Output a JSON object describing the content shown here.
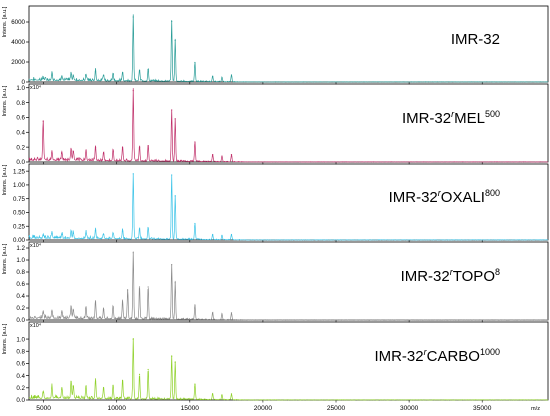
{
  "chart_data": {
    "type": "line",
    "x_axis": {
      "label": "m/z",
      "range": [
        4000,
        39500
      ],
      "ticks": [
        5000,
        10000,
        15000,
        20000,
        25000,
        30000,
        35000
      ]
    },
    "panels": [
      {
        "name": "IMR-32",
        "name_sup": "",
        "ylabel": "Intens. [a.u.]",
        "ylim": [
          0,
          7600
        ],
        "yticks": [
          0,
          2000,
          4000,
          6000
        ],
        "ytick_labels": [
          "0",
          "2000",
          "4000",
          "6000"
        ],
        "exponent": "",
        "color": "#2a9d98",
        "peaks": [
          [
            4970,
            360
          ],
          [
            5570,
            700
          ],
          [
            6250,
            520
          ],
          [
            6880,
            780
          ],
          [
            7030,
            580
          ],
          [
            7900,
            650
          ],
          [
            8550,
            1080
          ],
          [
            9100,
            650
          ],
          [
            9750,
            780
          ],
          [
            10400,
            900
          ],
          [
            11130,
            6500
          ],
          [
            11560,
            1150
          ],
          [
            12150,
            1250
          ],
          [
            13760,
            6050
          ],
          [
            14000,
            4150
          ],
          [
            15350,
            1950
          ],
          [
            16560,
            580
          ],
          [
            17200,
            450
          ],
          [
            17850,
            700
          ]
        ]
      },
      {
        "name": "IMR-32",
        "name_sup": "MEL",
        "name_sup2": "500",
        "ylabel": "Intens. [a.u.]",
        "ylim": [
          0,
          1.05
        ],
        "yticks": [
          0,
          0.2,
          0.4,
          0.6,
          0.8,
          1.0
        ],
        "ytick_labels": [
          "0.0",
          "0.2",
          "0.4",
          "0.6",
          "0.8",
          "1.0"
        ],
        "exponent": "x10⁴",
        "color": "#c0306a",
        "peaks": [
          [
            4970,
            0.55
          ],
          [
            5570,
            0.13
          ],
          [
            6250,
            0.12
          ],
          [
            6880,
            0.17
          ],
          [
            7030,
            0.14
          ],
          [
            7900,
            0.15
          ],
          [
            8550,
            0.2
          ],
          [
            9100,
            0.12
          ],
          [
            9750,
            0.14
          ],
          [
            10400,
            0.2
          ],
          [
            11130,
            0.96
          ],
          [
            11560,
            0.2
          ],
          [
            12150,
            0.22
          ],
          [
            13760,
            0.7
          ],
          [
            14000,
            0.58
          ],
          [
            15350,
            0.27
          ],
          [
            16560,
            0.1
          ],
          [
            17200,
            0.08
          ],
          [
            17850,
            0.1
          ]
        ]
      },
      {
        "name": "IMR-32",
        "name_sup": "OXALI",
        "name_sup2": "800",
        "ylabel": "Intens. [a.u.]",
        "ylim": [
          0,
          1.38
        ],
        "yticks": [
          0,
          0.25,
          0.5,
          0.75,
          1.0,
          1.25
        ],
        "ytick_labels": [
          "0.00",
          "0.25",
          "0.50",
          "0.75",
          "1.00",
          "1.25"
        ],
        "exponent": "",
        "color": "#3cc4e8",
        "peaks": [
          [
            4970,
            0.08
          ],
          [
            5570,
            0.12
          ],
          [
            6250,
            0.1
          ],
          [
            6880,
            0.16
          ],
          [
            7030,
            0.12
          ],
          [
            7900,
            0.12
          ],
          [
            8550,
            0.18
          ],
          [
            9100,
            0.1
          ],
          [
            9750,
            0.12
          ],
          [
            10400,
            0.16
          ],
          [
            11130,
            1.2
          ],
          [
            11560,
            0.2
          ],
          [
            12150,
            0.22
          ],
          [
            13760,
            1.18
          ],
          [
            14000,
            0.8
          ],
          [
            15350,
            0.3
          ],
          [
            16560,
            0.1
          ],
          [
            17200,
            0.08
          ],
          [
            17850,
            0.1
          ]
        ]
      },
      {
        "name": "IMR-32",
        "name_sup": "TOPO",
        "name_sup2": "8",
        "ylabel": "Intens. [a.u.]",
        "ylim": [
          0,
          1.3
        ],
        "yticks": [
          0,
          0.2,
          0.4,
          0.6,
          0.8,
          1.0,
          1.2
        ],
        "ytick_labels": [
          "0.0",
          "0.2",
          "0.4",
          "0.6",
          "0.8",
          "1.0",
          "1.2"
        ],
        "exponent": "x10⁴",
        "color": "#8a8a8a",
        "peaks": [
          [
            4970,
            0.12
          ],
          [
            5570,
            0.14
          ],
          [
            6250,
            0.13
          ],
          [
            6880,
            0.22
          ],
          [
            7030,
            0.16
          ],
          [
            7900,
            0.2
          ],
          [
            8550,
            0.3
          ],
          [
            9100,
            0.18
          ],
          [
            9750,
            0.22
          ],
          [
            10400,
            0.3
          ],
          [
            10750,
            0.5
          ],
          [
            11130,
            1.12
          ],
          [
            11560,
            0.55
          ],
          [
            12150,
            0.55
          ],
          [
            13760,
            0.92
          ],
          [
            14000,
            0.62
          ],
          [
            15350,
            0.25
          ],
          [
            16560,
            0.12
          ],
          [
            17200,
            0.1
          ],
          [
            17850,
            0.12
          ]
        ]
      },
      {
        "name": "IMR-32",
        "name_sup": "CARBO",
        "name_sup2": "1000",
        "ylabel": "Intens. [a.u.]",
        "ylim": [
          0,
          1.28
        ],
        "yticks": [
          0,
          0.2,
          0.4,
          0.6,
          0.8,
          1.0
        ],
        "ytick_labels": [
          "0.0",
          "0.2",
          "0.4",
          "0.6",
          "0.8",
          "1.0"
        ],
        "exponent": "x10⁴",
        "color": "#8fd12a",
        "peaks": [
          [
            4970,
            0.12
          ],
          [
            5570,
            0.2
          ],
          [
            6250,
            0.18
          ],
          [
            6880,
            0.3
          ],
          [
            7030,
            0.22
          ],
          [
            7900,
            0.22
          ],
          [
            8550,
            0.3
          ],
          [
            9100,
            0.2
          ],
          [
            9750,
            0.24
          ],
          [
            10400,
            0.32
          ],
          [
            11130,
            1.0
          ],
          [
            11560,
            0.42
          ],
          [
            12150,
            0.5
          ],
          [
            13760,
            0.72
          ],
          [
            14000,
            0.62
          ],
          [
            15350,
            0.26
          ],
          [
            16560,
            0.1
          ],
          [
            17200,
            0.08
          ],
          [
            17850,
            0.1
          ]
        ]
      }
    ]
  }
}
